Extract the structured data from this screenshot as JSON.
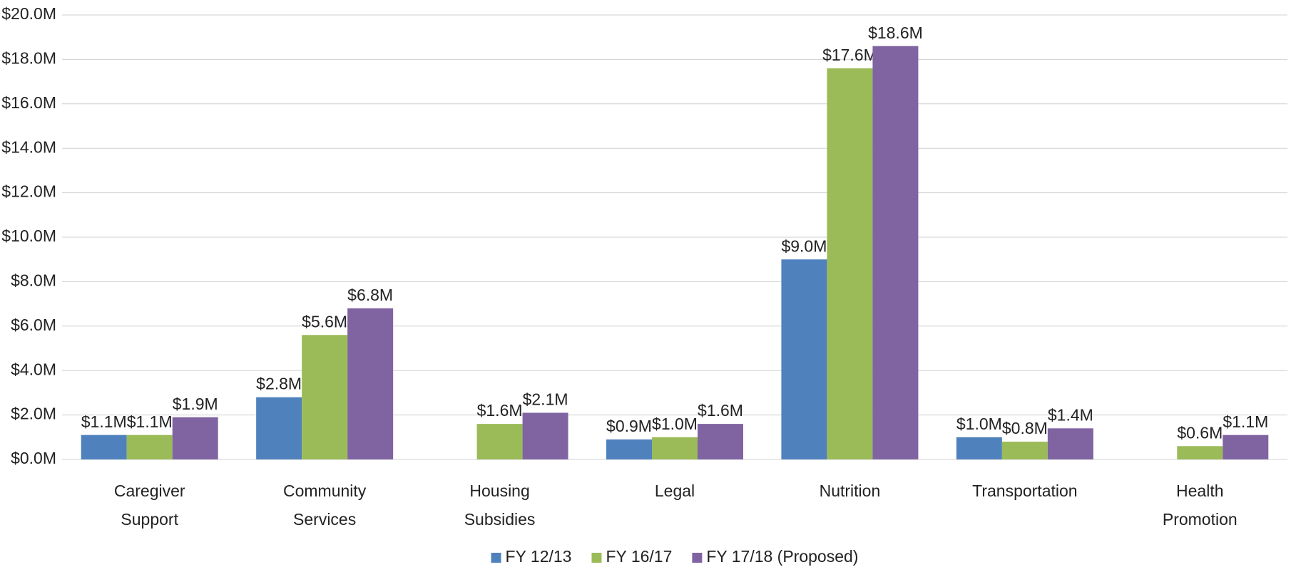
{
  "chart_data": {
    "type": "bar",
    "categories": [
      "Caregiver Support",
      "Community Services",
      "Housing Subsidies",
      "Legal",
      "Nutrition",
      "Transportation",
      "Health Promotion"
    ],
    "series": [
      {
        "name": "FY 12/13",
        "color": "#4f81bd",
        "values": [
          1.1,
          2.8,
          null,
          0.9,
          9.0,
          1.0,
          null
        ],
        "value_labels": [
          "$1.1M",
          "$2.8M",
          null,
          "$0.9M",
          "$9.0M",
          "$1.0M",
          null
        ]
      },
      {
        "name": "FY 16/17",
        "color": "#9bbb59",
        "values": [
          1.1,
          5.6,
          1.6,
          1.0,
          17.6,
          0.8,
          0.6
        ],
        "value_labels": [
          "$1.1M",
          "$5.6M",
          "$1.6M",
          "$1.0M",
          "$17.6M",
          "$0.8M",
          "$0.6M"
        ]
      },
      {
        "name": "FY 17/18 (Proposed)",
        "color": "#8064a2",
        "values": [
          1.9,
          6.8,
          2.1,
          1.6,
          18.6,
          1.4,
          1.1
        ],
        "value_labels": [
          "$1.9M",
          "$6.8M",
          "$2.1M",
          "$1.6M",
          "$18.6M",
          "$1.4M",
          "$1.1M"
        ]
      }
    ],
    "ylim": [
      0,
      20
    ],
    "yticks": [
      {
        "value": 0,
        "label": "$0.0M"
      },
      {
        "value": 2,
        "label": "$2.0M"
      },
      {
        "value": 4,
        "label": "$4.0M"
      },
      {
        "value": 6,
        "label": "$6.0M"
      },
      {
        "value": 8,
        "label": "$8.0M"
      },
      {
        "value": 10,
        "label": "$10.0M"
      },
      {
        "value": 12,
        "label": "$12.0M"
      },
      {
        "value": 14,
        "label": "$14.0M"
      },
      {
        "value": 16,
        "label": "$16.0M"
      },
      {
        "value": 18,
        "label": "$18.0M"
      },
      {
        "value": 20,
        "label": "$20.0M"
      }
    ],
    "grid": true,
    "legend": "bottom"
  }
}
